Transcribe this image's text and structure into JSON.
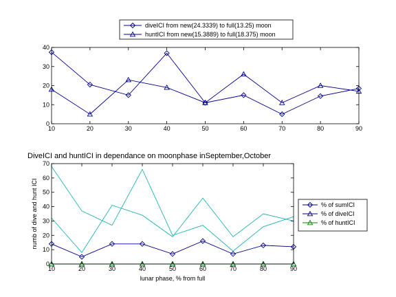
{
  "chart_data": [
    {
      "type": "line",
      "title": "",
      "xlabel": "",
      "ylabel": "",
      "xlim": [
        10,
        90
      ],
      "ylim": [
        0,
        40
      ],
      "xticks": [
        10,
        20,
        30,
        40,
        50,
        60,
        70,
        80,
        90
      ],
      "yticks": [
        0,
        10,
        20,
        30,
        40
      ],
      "grid": false,
      "legend_position": "top",
      "x": [
        10,
        20,
        30,
        40,
        50,
        60,
        70,
        80,
        90
      ],
      "series": [
        {
          "name": "diveICI from new(24.3339) to full(13.25) moon",
          "marker": "diamond",
          "color": "#00008b",
          "values": [
            37.5,
            20.5,
            15,
            37,
            11,
            15,
            5,
            14.5,
            18.5
          ]
        },
        {
          "name": "huntICI from new(15.3889) to full(18.375) moon",
          "marker": "triangle",
          "color": "#00008b",
          "values": [
            18,
            5,
            23,
            19,
            11,
            26,
            11,
            20,
            17
          ]
        }
      ]
    },
    {
      "type": "line",
      "title": "DiveICI and huntICI in dependance on moonphase inSeptember,October",
      "xlabel": "lunar phase, % from full",
      "ylabel": "numb of dive and hunt ICI",
      "xlim": [
        10,
        90
      ],
      "ylim": [
        0,
        70
      ],
      "xticks": [
        10,
        20,
        30,
        40,
        50,
        60,
        70,
        80,
        90
      ],
      "yticks": [
        0,
        10,
        20,
        30,
        40,
        50,
        60,
        70
      ],
      "grid": false,
      "legend_position": "right",
      "x": [
        10,
        20,
        30,
        40,
        50,
        60,
        70,
        80,
        90
      ],
      "series": [
        {
          "name": "% of sumICI",
          "marker": "diamond",
          "color": "#00008b",
          "values": [
            14,
            5,
            14,
            14,
            7,
            16,
            7,
            13,
            12
          ]
        },
        {
          "name": "% of diveICI",
          "marker": "triangle",
          "color": "#00008b",
          "values": [
            0,
            0,
            0,
            0,
            0,
            0,
            0,
            0,
            0
          ]
        },
        {
          "name": "% of huntICI",
          "marker": "triangle",
          "color": "#008000",
          "values": [
            0,
            0,
            0,
            0,
            0,
            0,
            0,
            0,
            0
          ]
        },
        {
          "name": "",
          "marker": "none",
          "color": "#20b2b2",
          "values": [
            68,
            37,
            27,
            66,
            20,
            27,
            9,
            26,
            33
          ]
        },
        {
          "name": "",
          "marker": "none",
          "color": "#20b2b2",
          "values": [
            32,
            8,
            41,
            34,
            19,
            46,
            19,
            35,
            30
          ]
        }
      ]
    }
  ]
}
